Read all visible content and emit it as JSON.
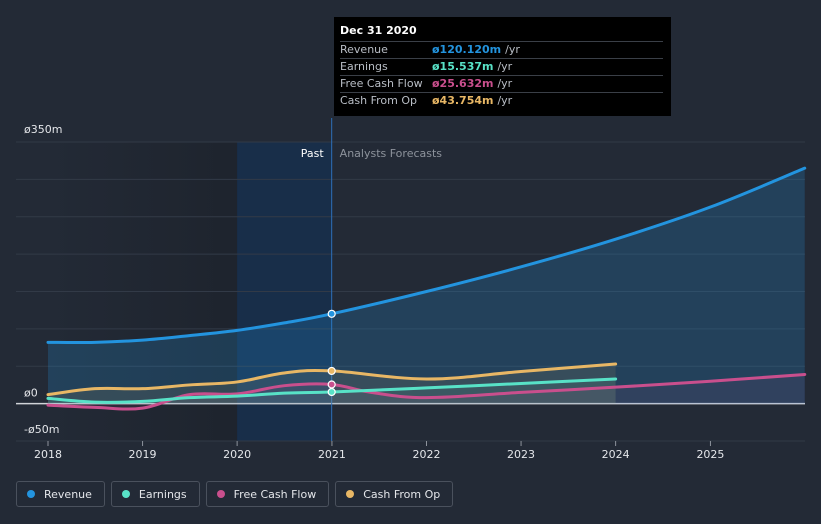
{
  "chart_data": {
    "type": "line",
    "currency_symbol": "ø",
    "y_ticks": [
      {
        "value": 350,
        "label": "ø350m"
      },
      {
        "value": 0,
        "label": "ø0"
      },
      {
        "value": -50,
        "label": "-ø50m"
      }
    ],
    "x_ticks": [
      "2018",
      "2019",
      "2020",
      "2021",
      "2022",
      "2023",
      "2024",
      "2025"
    ],
    "xlim": [
      "2018-01-01",
      "2026-01-01"
    ],
    "ylim": [
      -50,
      350
    ],
    "past_label": "Past",
    "forecast_label": "Analysts Forecasts",
    "past_end": "2020-12-31",
    "series": [
      {
        "name": "Revenue",
        "color": "#2394df",
        "points": [
          [
            "2018-01-01",
            82
          ],
          [
            "2018-07-01",
            82
          ],
          [
            "2019-01-01",
            85
          ],
          [
            "2019-07-01",
            91
          ],
          [
            "2020-01-01",
            98
          ],
          [
            "2020-07-01",
            108
          ],
          [
            "2020-12-31",
            120.12
          ],
          [
            "2022-01-01",
            150
          ],
          [
            "2023-01-01",
            183
          ],
          [
            "2024-01-01",
            220
          ],
          [
            "2025-01-01",
            263
          ],
          [
            "2025-12-31",
            315
          ]
        ]
      },
      {
        "name": "Earnings",
        "color": "#58e2c7",
        "points": [
          [
            "2018-01-01",
            7
          ],
          [
            "2018-07-01",
            2
          ],
          [
            "2019-01-01",
            3
          ],
          [
            "2019-07-01",
            8
          ],
          [
            "2020-01-01",
            10
          ],
          [
            "2020-07-01",
            14
          ],
          [
            "2020-12-31",
            15.537
          ],
          [
            "2022-01-01",
            21
          ],
          [
            "2023-01-01",
            27
          ],
          [
            "2024-01-01",
            33
          ]
        ]
      },
      {
        "name": "Free Cash Flow",
        "color": "#c94f8d",
        "points": [
          [
            "2018-01-01",
            -2
          ],
          [
            "2018-07-01",
            -5
          ],
          [
            "2019-01-01",
            -6
          ],
          [
            "2019-07-01",
            12
          ],
          [
            "2020-01-01",
            13
          ],
          [
            "2020-07-01",
            24
          ],
          [
            "2020-12-31",
            25.632
          ],
          [
            "2021-06-01",
            15
          ],
          [
            "2022-01-01",
            8
          ],
          [
            "2023-01-01",
            15
          ],
          [
            "2024-01-01",
            22
          ],
          [
            "2025-01-01",
            30
          ],
          [
            "2025-12-31",
            39
          ]
        ]
      },
      {
        "name": "Cash From Op",
        "color": "#e8b765",
        "points": [
          [
            "2018-01-01",
            12
          ],
          [
            "2018-07-01",
            20
          ],
          [
            "2019-01-01",
            20
          ],
          [
            "2019-07-01",
            25
          ],
          [
            "2020-01-01",
            29
          ],
          [
            "2020-07-01",
            41
          ],
          [
            "2020-12-31",
            43.754
          ],
          [
            "2022-01-01",
            33
          ],
          [
            "2023-01-01",
            43
          ],
          [
            "2024-01-01",
            53
          ]
        ]
      }
    ]
  },
  "tooltip": {
    "date": "Dec 31 2020",
    "rows": [
      {
        "label": "Revenue",
        "value": "ø120.120m",
        "unit": "/yr",
        "color": "#2394df"
      },
      {
        "label": "Earnings",
        "value": "ø15.537m",
        "unit": "/yr",
        "color": "#58e2c7"
      },
      {
        "label": "Free Cash Flow",
        "value": "ø25.632m",
        "unit": "/yr",
        "color": "#c94f8d"
      },
      {
        "label": "Cash From Op",
        "value": "ø43.754m",
        "unit": "/yr",
        "color": "#e8b765"
      }
    ]
  },
  "legend": [
    {
      "label": "Revenue",
      "color": "#2394df"
    },
    {
      "label": "Earnings",
      "color": "#58e2c7"
    },
    {
      "label": "Free Cash Flow",
      "color": "#c94f8d"
    },
    {
      "label": "Cash From Op",
      "color": "#e8b765"
    }
  ]
}
